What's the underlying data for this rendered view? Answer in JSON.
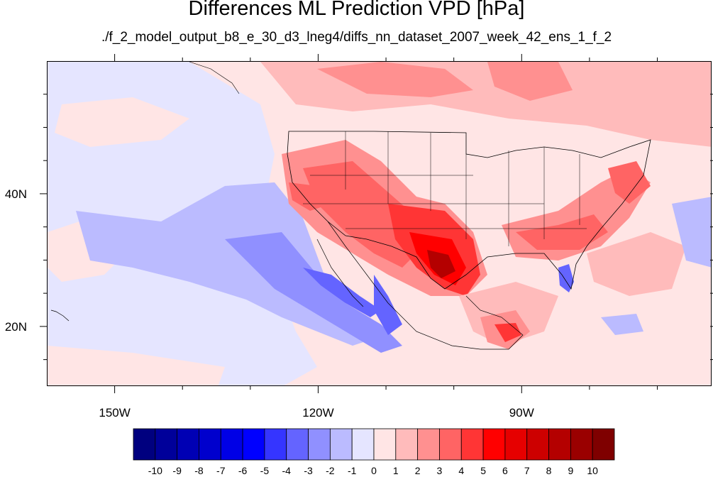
{
  "title": "Differences ML Prediction VPD [hPa]",
  "subtitle": "./f_2_model_output_b8_e_30_d3_lneg4/diffs_nn_dataset_2007_week_42_ens_1_f_2",
  "map": {
    "lon_range": [
      -160,
      -62
    ],
    "lat_range": [
      11,
      60
    ],
    "lon_ticks": [
      {
        "value": -150,
        "label": "150W"
      },
      {
        "value": -120,
        "label": "120W"
      },
      {
        "value": -90,
        "label": "90W"
      }
    ],
    "lat_ticks": [
      {
        "value": 40,
        "label": "40N"
      },
      {
        "value": 20,
        "label": "20N"
      }
    ],
    "minor_lon_ticks": [
      -140,
      -130,
      -110,
      -100,
      -80,
      -70
    ],
    "minor_lat_ticks": [
      15,
      25,
      30,
      35,
      45,
      50,
      55
    ]
  },
  "colorbar": {
    "labels": [
      "-10",
      "-9",
      "-8",
      "-7",
      "-6",
      "-5",
      "-4",
      "-3",
      "-2",
      "-1",
      "0",
      "1",
      "2",
      "3",
      "4",
      "5",
      "6",
      "7",
      "8",
      "9",
      "10"
    ],
    "colors": [
      "#00007f",
      "#00009a",
      "#0000b4",
      "#0000cd",
      "#0000e6",
      "#0000ff",
      "#3535ff",
      "#6464ff",
      "#9090ff",
      "#bbbbff",
      "#e5e5ff",
      "#ffe5e5",
      "#ffbbbb",
      "#ff9090",
      "#ff6464",
      "#ff3535",
      "#ff0000",
      "#e60000",
      "#cd0000",
      "#b40000",
      "#9a0000",
      "#7f0000"
    ]
  }
}
